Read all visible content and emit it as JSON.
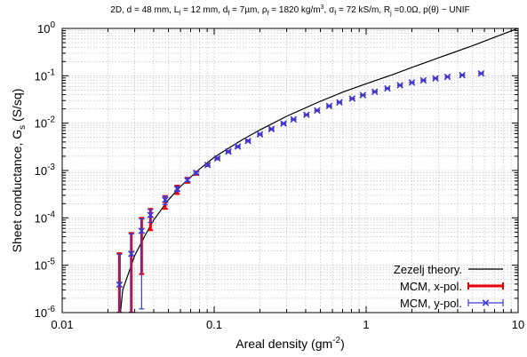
{
  "chart_data": {
    "type": "scatter",
    "x_scale": "log",
    "y_scale": "log",
    "xlim": [
      0.01,
      10
    ],
    "ylim": [
      1e-06,
      1
    ],
    "xlabel": "Areal density (gm",
    "xlabel_sup": "-2",
    "xlabel_end": ")",
    "ylabel": "Sheet conductance, G",
    "ylabel_sub": "s",
    "ylabel_end": " (S/sq)",
    "title_parts": [
      {
        "t": "2D, d = 48 mm, L",
        "s": ""
      },
      {
        "t": "f",
        "s": "sub"
      },
      {
        "t": " = 12 mm, d",
        "s": ""
      },
      {
        "t": "f",
        "s": "sub"
      },
      {
        "t": " = 7µm, ρ",
        "s": ""
      },
      {
        "t": "f",
        "s": "sub"
      },
      {
        "t": " = 1820 kg/m",
        "s": ""
      },
      {
        "t": "3",
        "s": "sup"
      },
      {
        "t": ", σ",
        "s": ""
      },
      {
        "t": "f",
        "s": "sub"
      },
      {
        "t": " = 72 kS/m, R",
        "s": ""
      },
      {
        "t": "j",
        "s": "sub"
      },
      {
        "t": " =0.0Ω, p(θ) ~ UNIF",
        "s": ""
      }
    ],
    "x_ticks": [
      {
        "v": 0.01,
        "label": "0.01"
      },
      {
        "v": 0.1,
        "label": "0.1"
      },
      {
        "v": 1,
        "label": "1"
      },
      {
        "v": 10,
        "label": "10"
      }
    ],
    "y_ticks": [
      {
        "exp": 0,
        "base": "10",
        "sup": "0"
      },
      {
        "exp": -1,
        "base": "10",
        "sup": "-1"
      },
      {
        "exp": -2,
        "base": "10",
        "sup": "-2"
      },
      {
        "exp": -3,
        "base": "10",
        "sup": "-3"
      },
      {
        "exp": -4,
        "base": "10",
        "sup": "-4"
      },
      {
        "exp": -5,
        "base": "10",
        "sup": "-5"
      },
      {
        "exp": -6,
        "base": "10",
        "sup": "-6"
      }
    ],
    "grid": true,
    "legend_position": "bottom-right",
    "series": [
      {
        "name": "Zezelj theory.",
        "kind": "line",
        "color": "#000000",
        "x": [
          0.0225,
          0.025,
          0.03,
          0.035,
          0.04,
          0.05,
          0.06,
          0.08,
          0.1,
          0.15,
          0.2,
          0.3,
          0.5,
          0.7,
          1.0,
          1.5,
          2.0,
          3.0,
          5.0,
          7.0,
          10.0
        ],
        "y": [
          1e-07,
          3e-06,
          1.6e-05,
          4.2e-05,
          9e-05,
          0.00024,
          0.00046,
          0.00107,
          0.0019,
          0.0043,
          0.0072,
          0.014,
          0.029,
          0.045,
          0.068,
          0.106,
          0.15,
          0.24,
          0.43,
          0.65,
          1.0
        ]
      },
      {
        "name": "MCM, x-pol.",
        "kind": "errorbar",
        "color": "#e8000b",
        "points": [
          {
            "x": 0.0238,
            "y": 3.8e-06,
            "lo": 1e-06,
            "hi": 1.8e-05
          },
          {
            "x": 0.0285,
            "y": 1.7e-05,
            "lo": 1e-06,
            "hi": 4.8e-05
          },
          {
            "x": 0.0333,
            "y": 5.2e-05,
            "lo": 6.5e-06,
            "hi": 0.0001
          },
          {
            "x": 0.0381,
            "y": 0.00011,
            "lo": 5.5e-05,
            "hi": 0.000155
          },
          {
            "x": 0.0476,
            "y": 0.00023,
            "lo": 0.000155,
            "hi": 0.00029
          },
          {
            "x": 0.0571,
            "y": 0.0004,
            "lo": 0.00032,
            "hi": 0.00048
          },
          {
            "x": 0.0667,
            "y": 0.00062,
            "lo": 0.00055,
            "hi": 0.0007
          },
          {
            "x": 0.0762,
            "y": 0.00088,
            "lo": 0.00081,
            "hi": 0.00095
          },
          {
            "x": 0.0905,
            "y": 0.0013,
            "lo": 0.00124,
            "hi": 0.00137
          },
          {
            "x": 0.105,
            "y": 0.0018,
            "lo": 0.00172,
            "hi": 0.00188
          },
          {
            "x": 0.124,
            "y": 0.0025,
            "lo": 0.0024,
            "hi": 0.0026
          },
          {
            "x": 0.143,
            "y": 0.0032,
            "lo": 0.0031,
            "hi": 0.0033
          },
          {
            "x": 0.167,
            "y": 0.0042,
            "lo": 0.00408,
            "hi": 0.00432
          },
          {
            "x": 0.2,
            "y": 0.0058,
            "lo": 0.00565,
            "hi": 0.00595
          },
          {
            "x": 0.238,
            "y": 0.0075,
            "lo": 0.00735,
            "hi": 0.00765
          },
          {
            "x": 0.286,
            "y": 0.0098,
            "lo": 0.0096,
            "hi": 0.01
          },
          {
            "x": 0.333,
            "y": 0.012,
            "lo": 0.0118,
            "hi": 0.0122
          },
          {
            "x": 0.405,
            "y": 0.015,
            "lo": 0.0148,
            "hi": 0.0152
          },
          {
            "x": 0.476,
            "y": 0.0185,
            "lo": 0.0183,
            "hi": 0.0187
          },
          {
            "x": 0.571,
            "y": 0.023,
            "lo": 0.0227,
            "hi": 0.0233
          },
          {
            "x": 0.667,
            "y": 0.0275,
            "lo": 0.0272,
            "hi": 0.0278
          },
          {
            "x": 0.81,
            "y": 0.033,
            "lo": 0.0327,
            "hi": 0.0333
          },
          {
            "x": 0.952,
            "y": 0.039,
            "lo": 0.0387,
            "hi": 0.0393
          },
          {
            "x": 1.14,
            "y": 0.046,
            "lo": 0.0456,
            "hi": 0.0464
          },
          {
            "x": 1.38,
            "y": 0.054,
            "lo": 0.0536,
            "hi": 0.0544
          },
          {
            "x": 1.67,
            "y": 0.063,
            "lo": 0.0625,
            "hi": 0.0635
          },
          {
            "x": 2.0,
            "y": 0.072,
            "lo": 0.0715,
            "hi": 0.0725
          },
          {
            "x": 2.38,
            "y": 0.08,
            "lo": 0.0795,
            "hi": 0.0805
          },
          {
            "x": 2.86,
            "y": 0.088,
            "lo": 0.0875,
            "hi": 0.0885
          },
          {
            "x": 3.43,
            "y": 0.095,
            "lo": 0.0945,
            "hi": 0.0955
          },
          {
            "x": 4.29,
            "y": 0.103,
            "lo": 0.1025,
            "hi": 0.1035
          },
          {
            "x": 5.71,
            "y": 0.112,
            "lo": 0.1115,
            "hi": 0.1125
          }
        ]
      },
      {
        "name": "MCM, y-pol.",
        "kind": "errorbar",
        "color": "#3a3ad8",
        "marker": "x",
        "points": [
          {
            "x": 0.0238,
            "y": 3.9e-06,
            "lo": 1e-06,
            "hi": 1.7e-05
          },
          {
            "x": 0.0285,
            "y": 1.75e-05,
            "lo": 1e-06,
            "hi": 4.6e-05
          },
          {
            "x": 0.0333,
            "y": 5.3e-05,
            "lo": 1.2e-06,
            "hi": 9.5e-05
          },
          {
            "x": 0.0381,
            "y": 0.000115,
            "lo": 8e-05,
            "hi": 0.00015
          },
          {
            "x": 0.0476,
            "y": 0.00024,
            "lo": 0.00019,
            "hi": 0.00029
          },
          {
            "x": 0.0571,
            "y": 0.00041,
            "lo": 0.00036,
            "hi": 0.00046
          },
          {
            "x": 0.0667,
            "y": 0.00063,
            "lo": 0.00059,
            "hi": 0.00067
          },
          {
            "x": 0.0762,
            "y": 0.00089,
            "lo": 0.00085,
            "hi": 0.00093
          },
          {
            "x": 0.0905,
            "y": 0.00131,
            "lo": 0.00127,
            "hi": 0.00135
          },
          {
            "x": 0.105,
            "y": 0.00181,
            "lo": 0.00176,
            "hi": 0.00186
          },
          {
            "x": 0.124,
            "y": 0.00251,
            "lo": 0.00245,
            "hi": 0.00257
          },
          {
            "x": 0.143,
            "y": 0.00321,
            "lo": 0.00314,
            "hi": 0.00328
          },
          {
            "x": 0.167,
            "y": 0.00421,
            "lo": 0.00412,
            "hi": 0.0043
          },
          {
            "x": 0.2,
            "y": 0.00581,
            "lo": 0.0057,
            "hi": 0.00592
          },
          {
            "x": 0.238,
            "y": 0.00751,
            "lo": 0.0074,
            "hi": 0.00762
          },
          {
            "x": 0.286,
            "y": 0.00981,
            "lo": 0.00965,
            "hi": 0.00997
          },
          {
            "x": 0.333,
            "y": 0.012,
            "lo": 0.01185,
            "hi": 0.01215
          },
          {
            "x": 0.405,
            "y": 0.015,
            "lo": 0.01485,
            "hi": 0.01515
          },
          {
            "x": 0.476,
            "y": 0.0185,
            "lo": 0.01835,
            "hi": 0.01865
          },
          {
            "x": 0.571,
            "y": 0.023,
            "lo": 0.0228,
            "hi": 0.0232
          },
          {
            "x": 0.667,
            "y": 0.0275,
            "lo": 0.0273,
            "hi": 0.0277
          },
          {
            "x": 0.81,
            "y": 0.033,
            "lo": 0.0328,
            "hi": 0.0332
          },
          {
            "x": 0.952,
            "y": 0.039,
            "lo": 0.0388,
            "hi": 0.0392
          },
          {
            "x": 1.14,
            "y": 0.046,
            "lo": 0.0457,
            "hi": 0.0463
          },
          {
            "x": 1.38,
            "y": 0.054,
            "lo": 0.0537,
            "hi": 0.0543
          },
          {
            "x": 1.67,
            "y": 0.063,
            "lo": 0.0626,
            "hi": 0.0634
          },
          {
            "x": 2.0,
            "y": 0.072,
            "lo": 0.0716,
            "hi": 0.0724
          },
          {
            "x": 2.38,
            "y": 0.08,
            "lo": 0.0796,
            "hi": 0.0804
          },
          {
            "x": 2.86,
            "y": 0.088,
            "lo": 0.0876,
            "hi": 0.0884
          },
          {
            "x": 3.43,
            "y": 0.095,
            "lo": 0.0946,
            "hi": 0.0954
          },
          {
            "x": 4.29,
            "y": 0.103,
            "lo": 0.1026,
            "hi": 0.1034
          },
          {
            "x": 5.71,
            "y": 0.112,
            "lo": 0.1116,
            "hi": 0.1124
          }
        ]
      }
    ]
  }
}
